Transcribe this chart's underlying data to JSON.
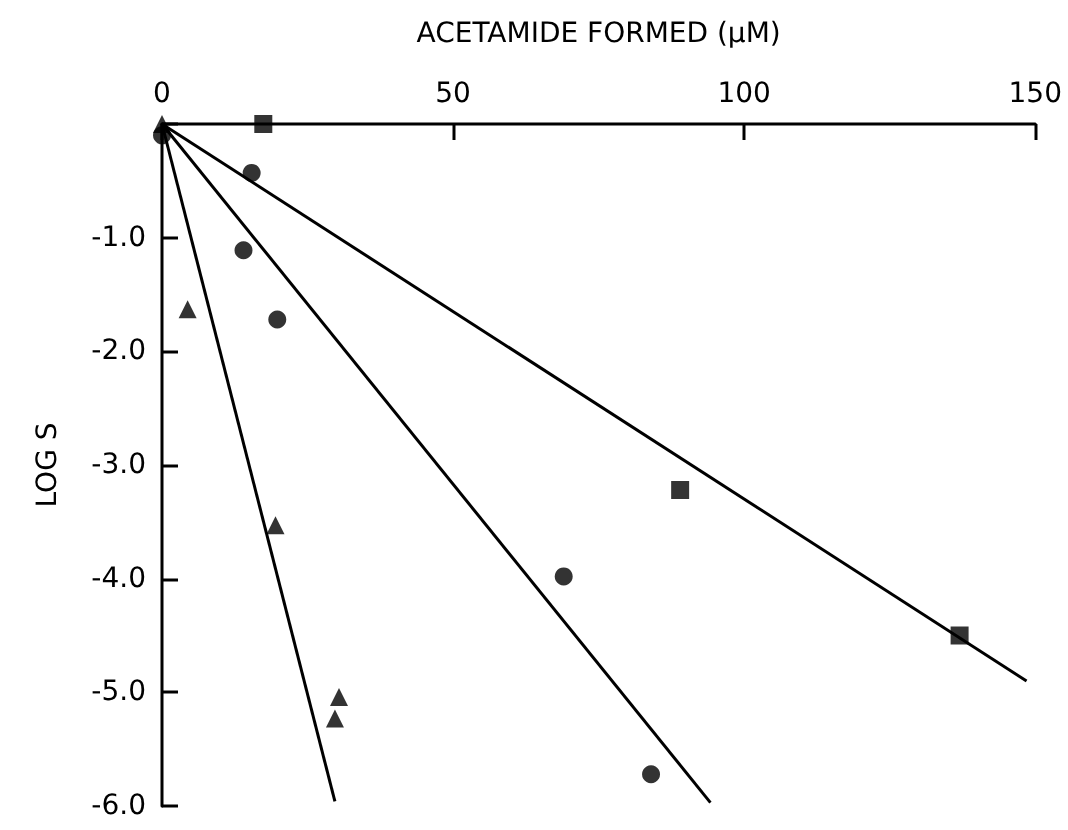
{
  "chart_data": {
    "type": "scatter",
    "xlabel": "ACETAMIDE FORMED (µM)",
    "ylabel": "LOG S",
    "xlim": [
      0,
      150
    ],
    "ylim": [
      -6,
      0
    ],
    "xticks": [
      0,
      50,
      100,
      150
    ],
    "yticks": [
      {
        "value": 0,
        "label": null
      },
      {
        "value": -1,
        "label": "-1.0"
      },
      {
        "value": -2,
        "label": "-2.0"
      },
      {
        "value": -3,
        "label": "-3.0"
      },
      {
        "value": -4,
        "label": "-4.0"
      },
      {
        "value": -5,
        "label": "-5.0"
      },
      {
        "value": -6,
        "label": "-6.0"
      }
    ],
    "series": [
      {
        "marker": "square",
        "color": "#000000",
        "x": [
          17.4,
          89,
          137
        ],
        "values": [
          0,
          -3.22,
          -4.5
        ]
      },
      {
        "marker": "circle",
        "color": "#000000",
        "x": [
          0,
          15.4,
          14,
          19.8,
          69,
          84
        ],
        "values": [
          -0.1,
          -0.43,
          -1.11,
          -1.72,
          -3.98,
          -5.72
        ]
      },
      {
        "marker": "triangle",
        "color": "#000000",
        "x": [
          0,
          4.4,
          19.5,
          30.4,
          29.7
        ],
        "values": [
          0,
          -1.63,
          -3.53,
          -5.04,
          -5.23
        ]
      },
      {
        "type": "line",
        "marker": "none",
        "color": "#000000",
        "x": [
          0,
          148.5
        ],
        "values": [
          0,
          -4.9
        ]
      },
      {
        "type": "line",
        "marker": "none",
        "color": "#000000",
        "x": [
          0,
          94.2
        ],
        "values": [
          0,
          -5.97
        ]
      },
      {
        "type": "line",
        "marker": "none",
        "color": "#000000",
        "x": [
          0,
          29.7
        ],
        "values": [
          0,
          -5.96
        ]
      }
    ]
  }
}
